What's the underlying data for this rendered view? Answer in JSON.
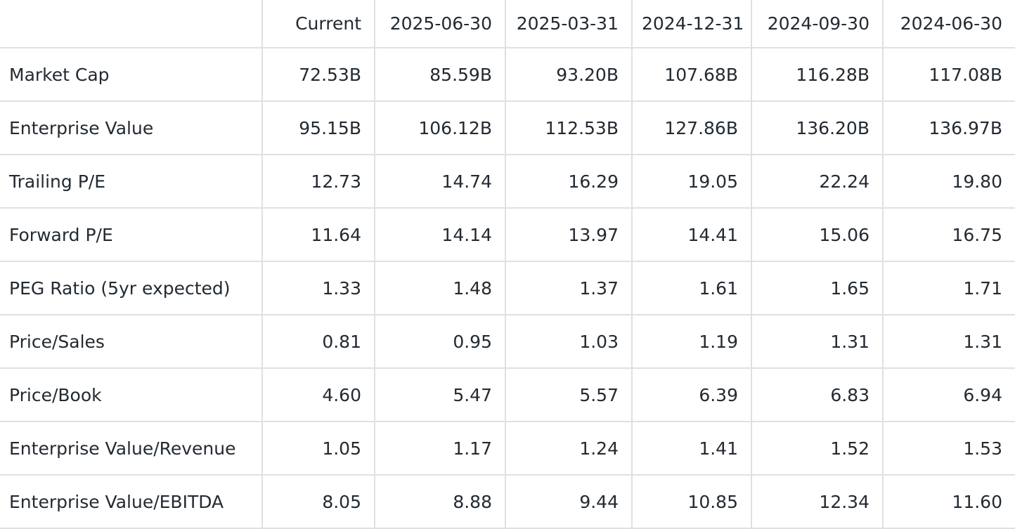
{
  "table": {
    "header": [
      "",
      "Current",
      "2025-06-30",
      "2025-03-31",
      "2024-12-31",
      "2024-09-30",
      "2024-06-30"
    ],
    "rows": [
      [
        "Market Cap",
        "72.53B",
        "85.59B",
        "93.20B",
        "107.68B",
        "116.28B",
        "117.08B"
      ],
      [
        "Enterprise Value",
        "95.15B",
        "106.12B",
        "112.53B",
        "127.86B",
        "136.20B",
        "136.97B"
      ],
      [
        "Trailing P/E",
        "12.73",
        "14.74",
        "16.29",
        "19.05",
        "22.24",
        "19.80"
      ],
      [
        "Forward P/E",
        "11.64",
        "14.14",
        "13.97",
        "14.41",
        "15.06",
        "16.75"
      ],
      [
        "PEG Ratio (5yr expected)",
        "1.33",
        "1.48",
        "1.37",
        "1.61",
        "1.65",
        "1.71"
      ],
      [
        "Price/Sales",
        "0.81",
        "0.95",
        "1.03",
        "1.19",
        "1.31",
        "1.31"
      ],
      [
        "Price/Book",
        "4.60",
        "5.47",
        "5.57",
        "6.39",
        "6.83",
        "6.94"
      ],
      [
        "Enterprise Value/Revenue",
        "1.05",
        "1.17",
        "1.24",
        "1.41",
        "1.52",
        "1.53"
      ],
      [
        "Enterprise Value/EBITDA",
        "8.05",
        "8.88",
        "9.44",
        "10.85",
        "12.34",
        "11.60"
      ]
    ]
  }
}
